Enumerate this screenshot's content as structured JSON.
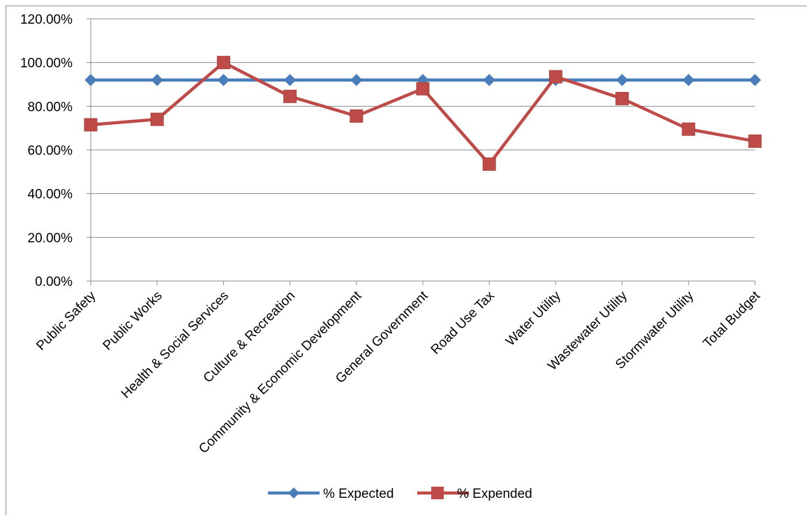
{
  "chart_data": {
    "type": "line",
    "title": "",
    "xlabel": "",
    "ylabel": "",
    "ylim": [
      0,
      120
    ],
    "y_ticks": [
      "0.00%",
      "20.00%",
      "40.00%",
      "60.00%",
      "80.00%",
      "100.00%",
      "120.00%"
    ],
    "grid": "horizontal",
    "legend_position": "bottom",
    "categories": [
      "Public Safety",
      "Public Works",
      "Health & Social Services",
      "Culture & Recreation",
      "Community & Economic Development",
      "General Government",
      "Road Use Tax",
      "Water Utility",
      "Wastewater Utility",
      "Stormwater Utility",
      "Total Budget"
    ],
    "series": [
      {
        "name": "% Expected",
        "color": "#4a7ebb",
        "marker": "diamond",
        "values": [
          92,
          92,
          92,
          92,
          92,
          92,
          92,
          92,
          92,
          92,
          92
        ]
      },
      {
        "name": "% Expended",
        "color": "#be4b48",
        "marker": "square",
        "values": [
          71.5,
          74,
          100,
          84.5,
          75.5,
          88,
          53.5,
          93.5,
          83.5,
          69.5,
          64
        ]
      }
    ]
  }
}
